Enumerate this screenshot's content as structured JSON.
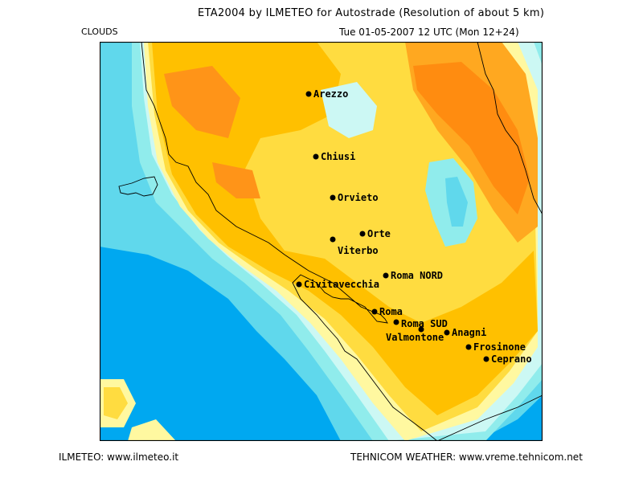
{
  "header": {
    "title": "ETA2004 by ILMETEO for Autostrade (Resolution of about 5 km)",
    "field": "CLOUDS",
    "valid_time": "Tue 01-05-2007 12 UTC (Mon 12+24)"
  },
  "footer": {
    "left": "ILMETEO: www.ilmeteo.it",
    "right": "TEHNICOM WEATHER: www.vreme.tehnicom.net"
  },
  "cities": [
    {
      "name": "Arezzo"
    },
    {
      "name": "Chiusi"
    },
    {
      "name": "Orvieto"
    },
    {
      "name": "Orte"
    },
    {
      "name": "Viterbo"
    },
    {
      "name": "Roma NORD"
    },
    {
      "name": "Civitavecchia"
    },
    {
      "name": "Roma"
    },
    {
      "name": "Roma SUD"
    },
    {
      "name": "Valmontone"
    },
    {
      "name": "Anagni"
    },
    {
      "name": "Frosinone"
    },
    {
      "name": "Ceprano"
    }
  ],
  "colors": {
    "clear_sea": "#00a8f0",
    "light_cover": "#60d8ec",
    "thin_cover": "#90ecec",
    "very_thin": "#ccf8f4",
    "pale_yellow": "#fff8a0",
    "yellow": "#ffdc40",
    "orange_yellow": "#ffc000",
    "orange": "#ffa820",
    "dark_orange": "#ff8c10"
  }
}
